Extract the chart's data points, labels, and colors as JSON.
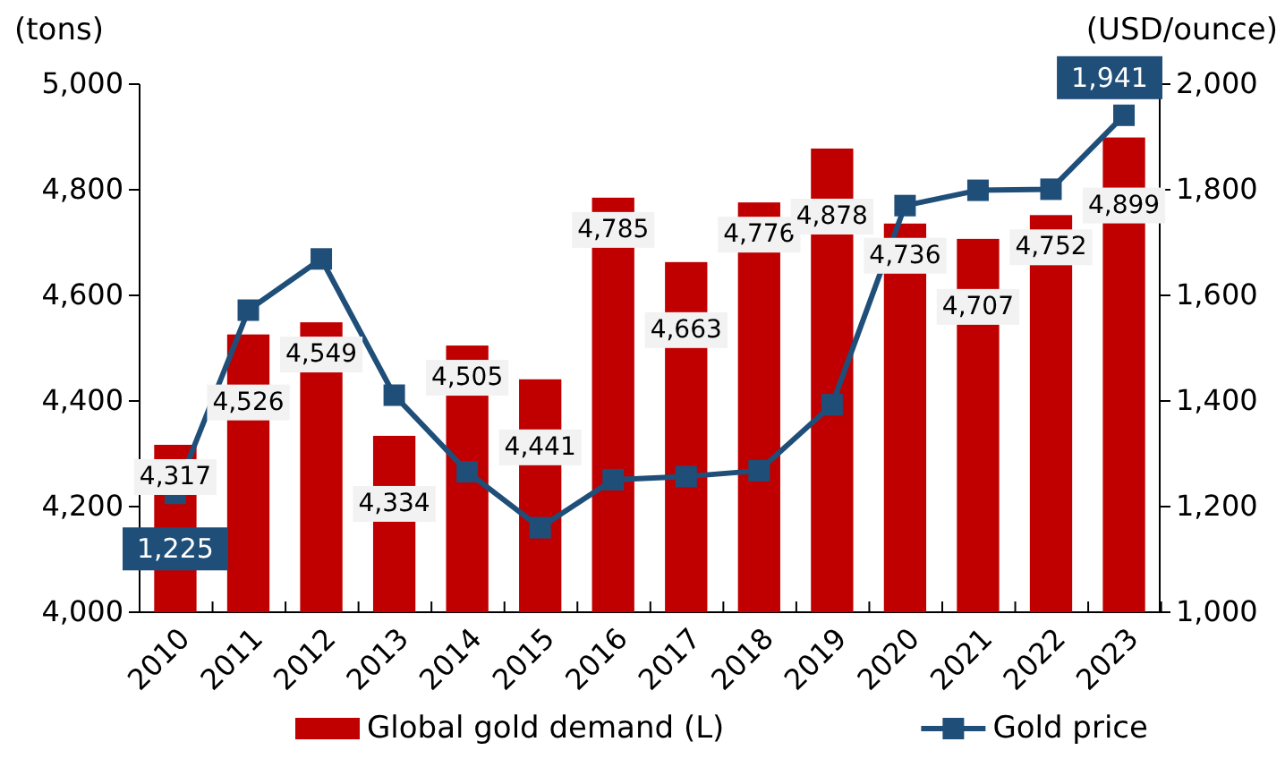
{
  "chart_data": {
    "type": "bar",
    "categories": [
      "2010",
      "2011",
      "2012",
      "2013",
      "2014",
      "2015",
      "2016",
      "2017",
      "2018",
      "2019",
      "2020",
      "2021",
      "2022",
      "2023"
    ],
    "series": [
      {
        "name": "Global gold demand (L)",
        "color": "#c00000",
        "values": [
          4317,
          4526,
          4549,
          4334,
          4505,
          4441,
          4785,
          4663,
          4776,
          4878,
          4736,
          4707,
          4752,
          4899
        ],
        "value_labels": [
          "4,317",
          "4,526",
          "4,549",
          "4,334",
          "4,505",
          "4,441",
          "4,785",
          "4,663",
          "4,776",
          "4,878",
          "4,736",
          "4,707",
          "4,752",
          "4,899"
        ]
      },
      {
        "name": "Gold price",
        "type": "line",
        "axis": "y2",
        "color": "#1f4e79",
        "marker": "square",
        "values": [
          1225,
          1572,
          1669,
          1411,
          1266,
          1160,
          1251,
          1257,
          1268,
          1393,
          1770,
          1799,
          1801,
          1941
        ],
        "value_labels": [
          "1,225",
          null,
          null,
          null,
          null,
          null,
          null,
          null,
          null,
          null,
          null,
          null,
          null,
          "1,941"
        ]
      }
    ],
    "ylabel": "(tons)",
    "y2label": "(USD/ounce)",
    "ylim": [
      4000,
      5000
    ],
    "yticks": [
      {
        "value": 4000,
        "label": "4,000"
      },
      {
        "value": 4200,
        "label": "4,200"
      },
      {
        "value": 4400,
        "label": "4,400"
      },
      {
        "value": 4600,
        "label": "4,600"
      },
      {
        "value": 4800,
        "label": "4,800"
      },
      {
        "value": 5000,
        "label": "5,000"
      }
    ],
    "y2lim": [
      1000,
      2000
    ],
    "y2ticks": [
      {
        "value": 1000,
        "label": "1,000"
      },
      {
        "value": 1200,
        "label": "1,200"
      },
      {
        "value": 1400,
        "label": "1,400"
      },
      {
        "value": 1600,
        "label": "1,600"
      },
      {
        "value": 1800,
        "label": "1,800"
      },
      {
        "value": 2000,
        "label": "2,000"
      }
    ],
    "legend": "bottom",
    "grid": false
  }
}
